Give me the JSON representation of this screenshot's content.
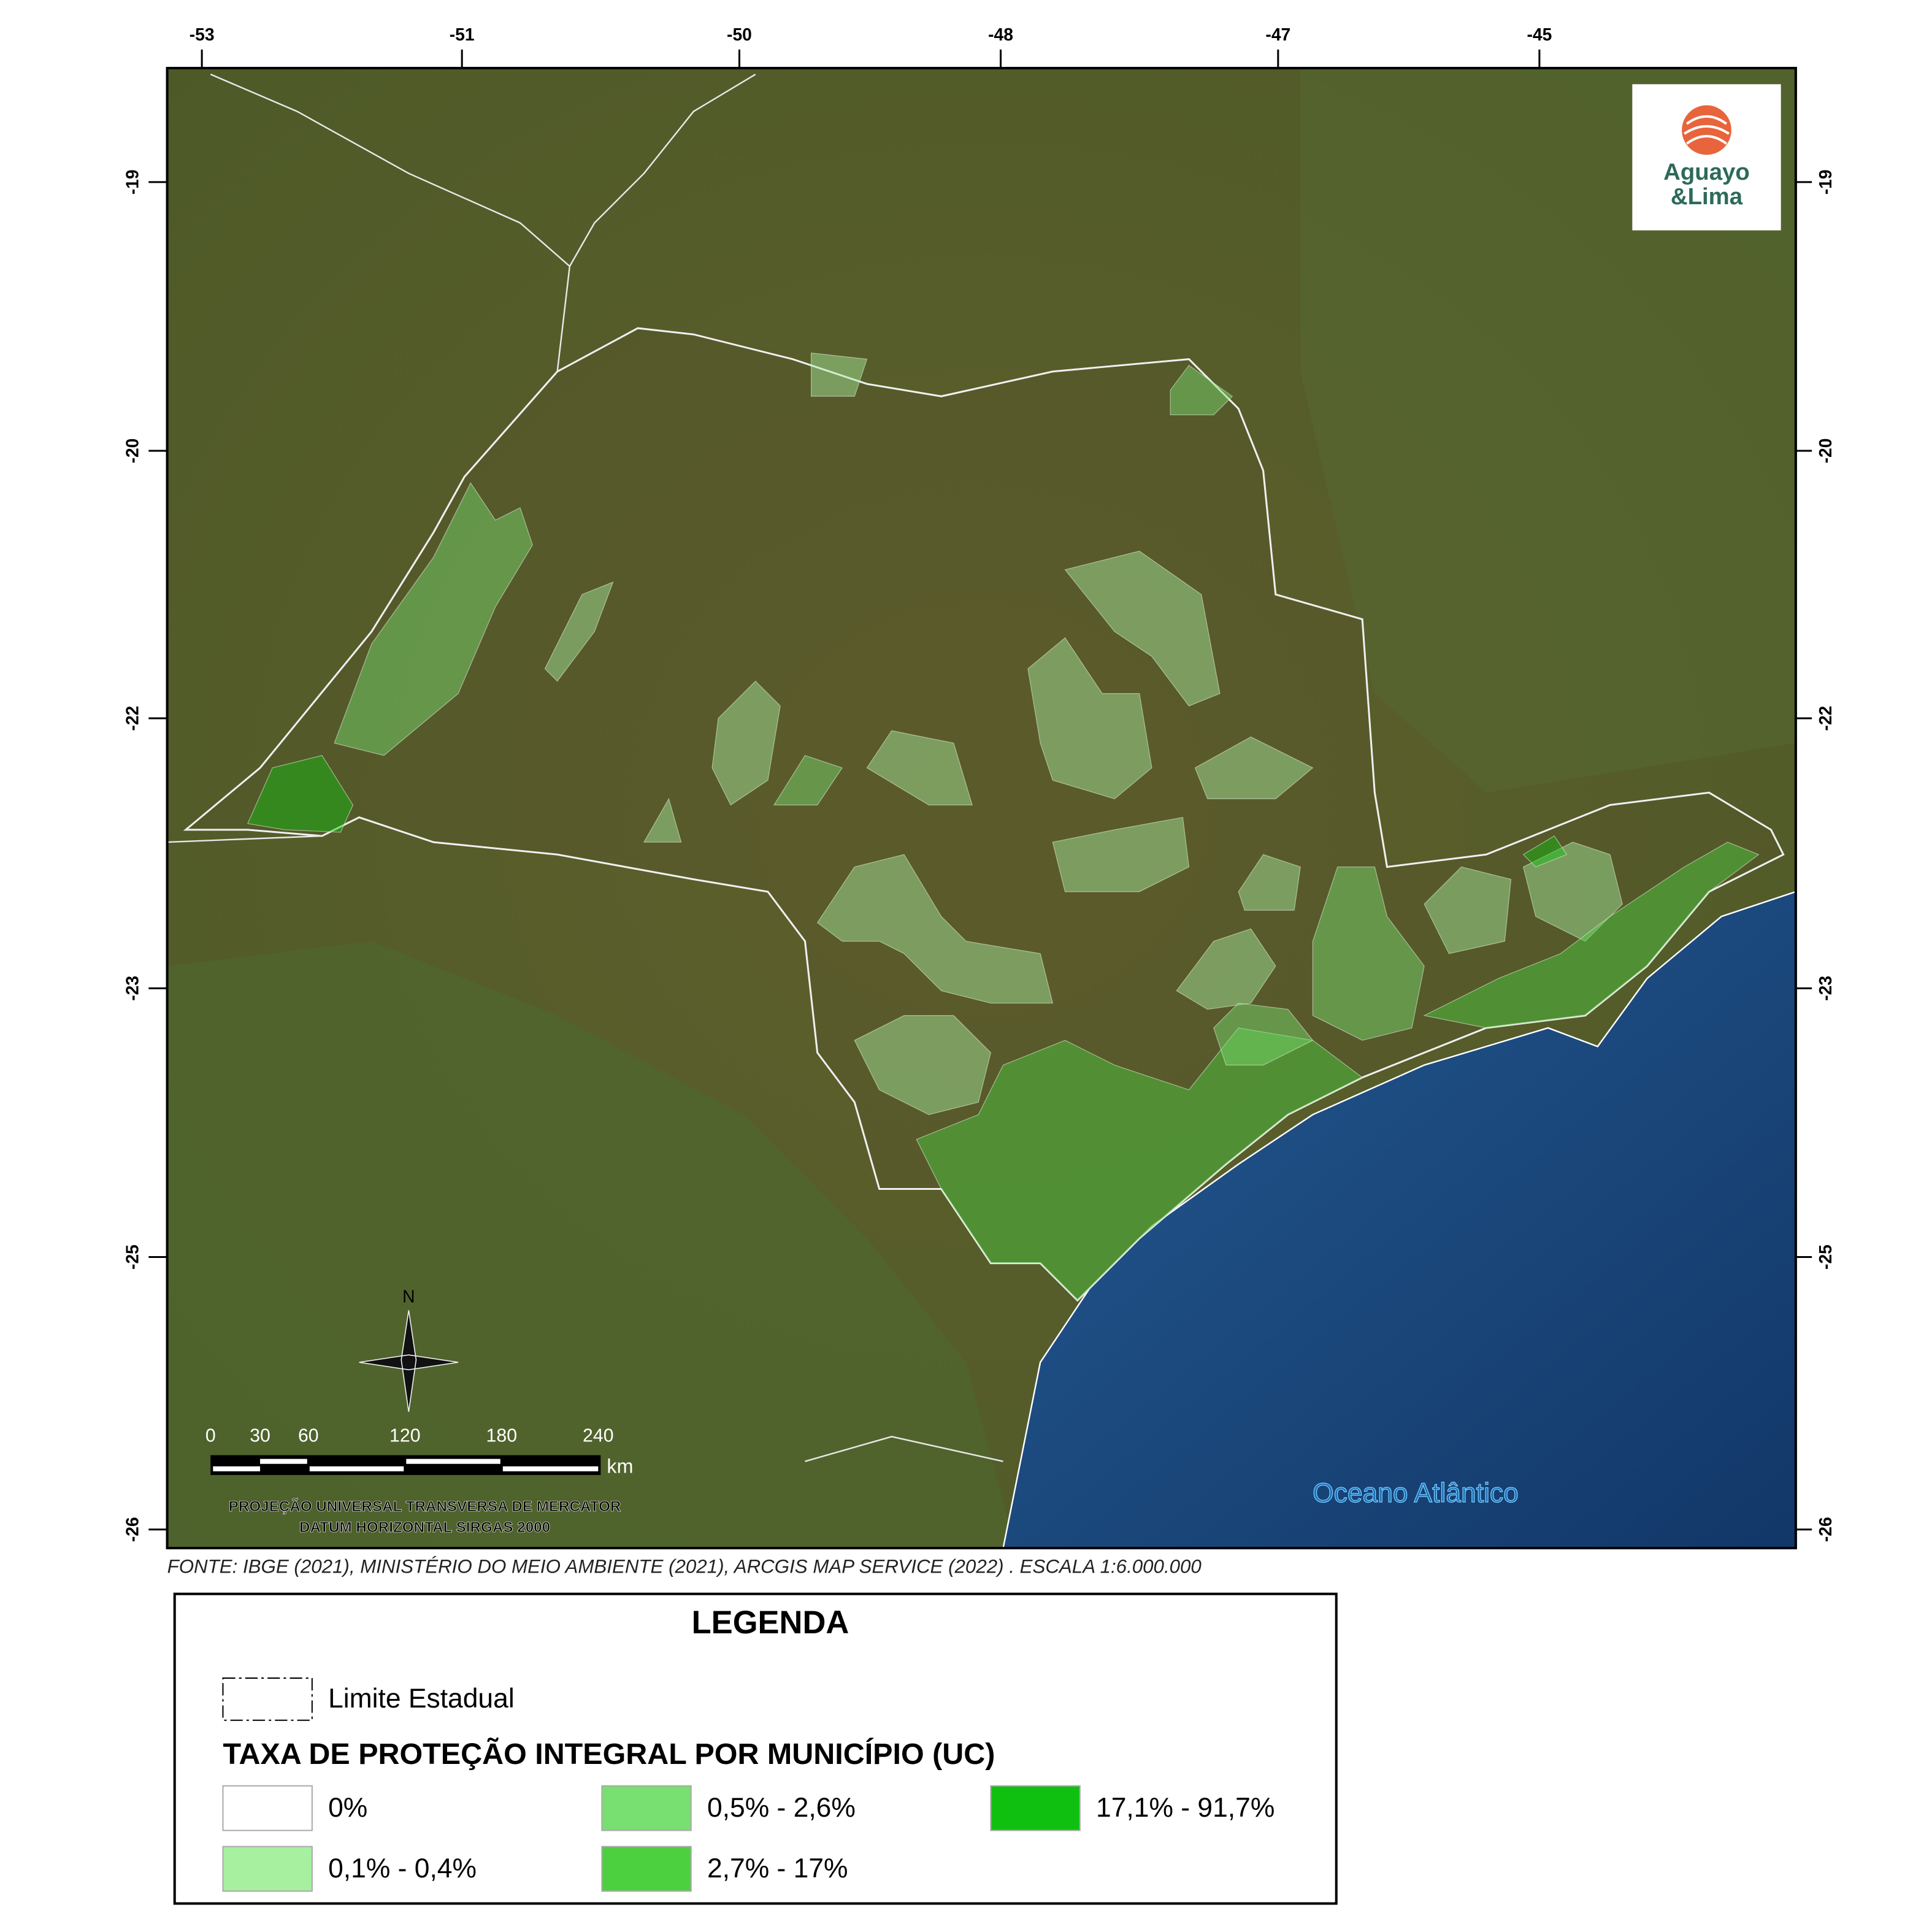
{
  "map": {
    "top_labels": [
      "-53",
      "-51",
      "-50",
      "-48",
      "-47",
      "-45"
    ],
    "left_labels": [
      "-19",
      "-20",
      "-22",
      "-23",
      "-25",
      "-26"
    ],
    "right_labels": [
      "-19",
      "-20",
      "-22",
      "-23",
      "-25",
      "-26"
    ],
    "logo": {
      "line1": "Aguayo",
      "line2": "&Lima"
    },
    "ocean_label": "Oceano Atlântico",
    "north": "N",
    "scale_bar": {
      "labels": [
        "0",
        "30",
        "60",
        "120",
        "180",
        "240"
      ],
      "unit": "km"
    },
    "projection": [
      "PROJEÇÃO UNIVERSAL TRANSVERSA DE MERCATOR",
      "DATUM HORIZONTAL SIRGAS 2000"
    ],
    "source": "FONTE: IBGE (2021), MINISTÉRIO DO MEIO AMBIENTE (2021), ARCGIS MAP SERVICE (2022) . ESCALA 1:6.000.000"
  },
  "legend": {
    "title": "LEGENDA",
    "boundary": "Limite Estadual",
    "subtitle": "TAXA DE PROTEÇÃO INTEGRAL POR MUNICÍPIO (UC)",
    "classes": [
      {
        "label": "0%",
        "color": "#ffffff"
      },
      {
        "label": "0,1% - 0,4%",
        "color": "#a6f0a0"
      },
      {
        "label": "0,5% - 2,6%",
        "color": "#78e070"
      },
      {
        "label": "2,7% - 17%",
        "color": "#4cd040"
      },
      {
        "label": "17,1% - 91,7%",
        "color": "#10c010"
      }
    ]
  }
}
